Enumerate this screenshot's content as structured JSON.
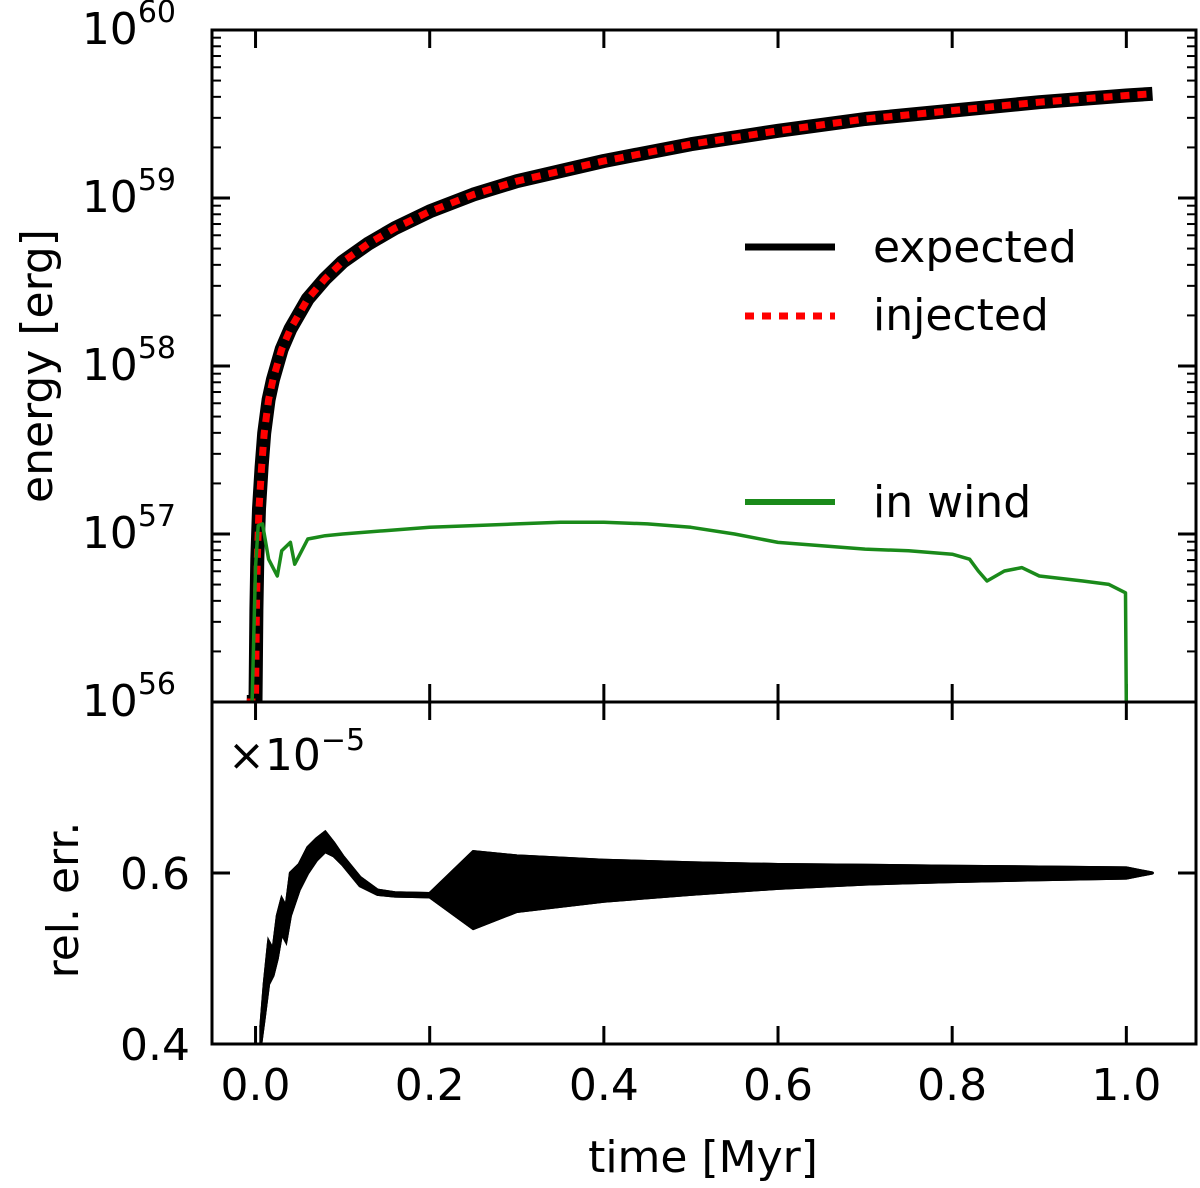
{
  "chart_data": [
    {
      "type": "line",
      "panel": "top",
      "yscale": "log",
      "ylabel": "energy [erg]",
      "xlim": [
        -0.05,
        1.08
      ],
      "ylim_exp": [
        56,
        60
      ],
      "yticks": [
        {
          "value": 56,
          "base": "10",
          "exp": "56"
        },
        {
          "value": 57,
          "base": "10",
          "exp": "57"
        },
        {
          "value": 58,
          "base": "10",
          "exp": "58"
        },
        {
          "value": 59,
          "base": "10",
          "exp": "59"
        },
        {
          "value": 60,
          "base": "10",
          "exp": "60"
        }
      ],
      "legend_position": "right",
      "series": [
        {
          "name": "expected",
          "color": "#000000",
          "style": "solid",
          "x": [
            -0.01,
            0.0,
            0.001,
            0.002,
            0.004,
            0.007,
            0.01,
            0.015,
            0.02,
            0.03,
            0.04,
            0.06,
            0.08,
            0.1,
            0.13,
            0.16,
            0.2,
            0.25,
            0.3,
            0.4,
            0.5,
            0.6,
            0.7,
            0.8,
            0.9,
            1.0,
            1.03
          ],
          "log_y": [
            56.0,
            56.0,
            56.55,
            56.85,
            57.15,
            57.4,
            57.6,
            57.8,
            57.92,
            58.1,
            58.22,
            58.4,
            58.52,
            58.62,
            58.73,
            58.82,
            58.92,
            59.02,
            59.1,
            59.22,
            59.32,
            59.4,
            59.47,
            59.52,
            59.57,
            59.61,
            59.62
          ]
        },
        {
          "name": "injected",
          "color": "#ff0000",
          "style": "dotted",
          "x": [
            -0.01,
            0.0,
            0.001,
            0.002,
            0.004,
            0.007,
            0.01,
            0.015,
            0.02,
            0.03,
            0.04,
            0.06,
            0.08,
            0.1,
            0.13,
            0.16,
            0.2,
            0.25,
            0.3,
            0.4,
            0.5,
            0.6,
            0.7,
            0.8,
            0.9,
            1.0,
            1.03
          ],
          "log_y": [
            56.0,
            56.0,
            56.55,
            56.85,
            57.15,
            57.4,
            57.6,
            57.8,
            57.92,
            58.1,
            58.22,
            58.4,
            58.52,
            58.62,
            58.73,
            58.82,
            58.92,
            59.02,
            59.1,
            59.22,
            59.32,
            59.4,
            59.47,
            59.52,
            59.57,
            59.61,
            59.62
          ]
        },
        {
          "name": "in wind",
          "color": "#1a8a1a",
          "style": "solid",
          "x": [
            -0.004,
            0.0,
            0.003,
            0.008,
            0.015,
            0.025,
            0.03,
            0.04,
            0.045,
            0.05,
            0.06,
            0.07,
            0.08,
            0.1,
            0.15,
            0.2,
            0.25,
            0.3,
            0.35,
            0.4,
            0.45,
            0.5,
            0.55,
            0.6,
            0.65,
            0.7,
            0.75,
            0.8,
            0.82,
            0.83,
            0.84,
            0.86,
            0.88,
            0.9,
            0.95,
            0.98,
            0.999,
            1.0
          ],
          "log_y": [
            56.0,
            56.8,
            57.05,
            57.06,
            56.85,
            56.75,
            56.9,
            56.95,
            56.82,
            56.87,
            56.97,
            56.98,
            56.99,
            57.0,
            57.02,
            57.04,
            57.05,
            57.06,
            57.07,
            57.07,
            57.06,
            57.04,
            57.0,
            56.95,
            56.93,
            56.91,
            56.9,
            56.88,
            56.85,
            56.78,
            56.72,
            56.78,
            56.8,
            56.75,
            56.72,
            56.7,
            56.65,
            56.0
          ]
        }
      ]
    },
    {
      "type": "line",
      "panel": "bottom",
      "ylabel": "rel. err.",
      "xlabel": "time [Myr]",
      "xlim": [
        -0.05,
        1.08
      ],
      "ylim": [
        0.4,
        0.8
      ],
      "multiplier_prefix": "×10",
      "multiplier_exp": "−5",
      "yticks": [
        {
          "value": 0.4,
          "label": "0.4"
        },
        {
          "value": 0.6,
          "label": "0.6"
        }
      ],
      "xticks": [
        {
          "value": 0.0,
          "label": "0.0"
        },
        {
          "value": 0.2,
          "label": "0.2"
        },
        {
          "value": 0.4,
          "label": "0.4"
        },
        {
          "value": 0.6,
          "label": "0.6"
        },
        {
          "value": 0.8,
          "label": "0.8"
        },
        {
          "value": 1.0,
          "label": "1.0"
        }
      ],
      "series": [
        {
          "name": "rel. err. (lower envelope)",
          "color": "#000000",
          "x": [
            0.006,
            0.01,
            0.015,
            0.02,
            0.025,
            0.03,
            0.035,
            0.04,
            0.05,
            0.06,
            0.07,
            0.08,
            0.09,
            0.1,
            0.12,
            0.14,
            0.16,
            0.2,
            0.25,
            0.3,
            0.4,
            0.5,
            0.6,
            0.7,
            0.8,
            0.9,
            1.0,
            1.03
          ],
          "y": [
            0.4,
            0.43,
            0.47,
            0.48,
            0.5,
            0.53,
            0.52,
            0.55,
            0.58,
            0.6,
            0.615,
            0.625,
            0.62,
            0.61,
            0.585,
            0.575,
            0.573,
            0.572,
            0.535,
            0.555,
            0.567,
            0.575,
            0.582,
            0.587,
            0.59,
            0.592,
            0.594,
            0.6
          ]
        },
        {
          "name": "rel. err. (upper envelope)",
          "color": "#000000",
          "x": [
            0.006,
            0.01,
            0.015,
            0.02,
            0.025,
            0.03,
            0.035,
            0.04,
            0.05,
            0.06,
            0.07,
            0.08,
            0.09,
            0.1,
            0.12,
            0.14,
            0.16,
            0.2,
            0.25,
            0.3,
            0.4,
            0.5,
            0.6,
            0.7,
            0.8,
            0.9,
            1.0,
            1.03
          ],
          "y": [
            0.42,
            0.47,
            0.52,
            0.51,
            0.55,
            0.57,
            0.56,
            0.6,
            0.61,
            0.63,
            0.64,
            0.648,
            0.635,
            0.62,
            0.595,
            0.58,
            0.577,
            0.576,
            0.625,
            0.62,
            0.615,
            0.612,
            0.61,
            0.609,
            0.608,
            0.607,
            0.606,
            0.6
          ]
        }
      ]
    }
  ]
}
